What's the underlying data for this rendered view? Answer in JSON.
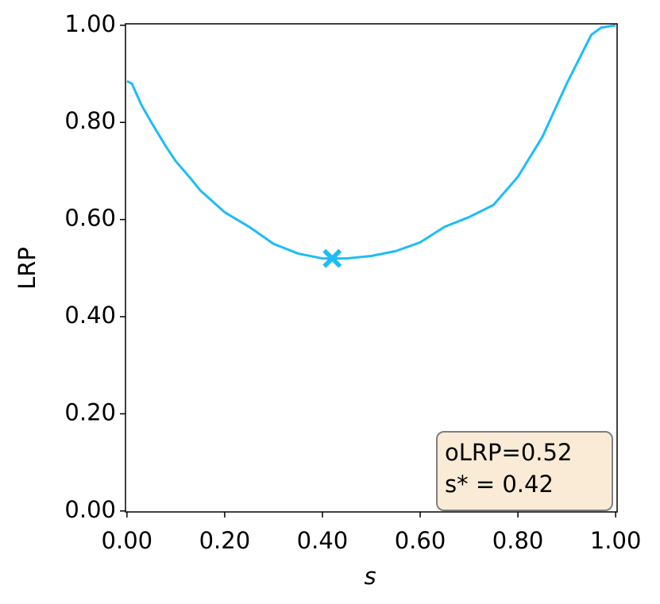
{
  "chart_data": {
    "type": "line",
    "xlabel": "s",
    "ylabel": "LRP",
    "x": [
      0,
      0.01,
      0.03,
      0.05,
      0.08,
      0.1,
      0.13,
      0.15,
      0.2,
      0.25,
      0.3,
      0.35,
      0.4,
      0.45,
      0.5,
      0.55,
      0.6,
      0.65,
      0.7,
      0.75,
      0.8,
      0.85,
      0.9,
      0.93,
      0.95,
      0.97,
      1.0
    ],
    "series": [
      {
        "name": "LRP",
        "color": "#1cbdf7",
        "values": [
          0.885,
          0.88,
          0.835,
          0.8,
          0.75,
          0.72,
          0.685,
          0.66,
          0.615,
          0.585,
          0.55,
          0.53,
          0.52,
          0.52,
          0.525,
          0.535,
          0.553,
          0.585,
          0.605,
          0.63,
          0.688,
          0.77,
          0.88,
          0.94,
          0.98,
          0.995,
          1.0
        ]
      }
    ],
    "optimum": {
      "x": 0.42,
      "y": 0.52
    },
    "annotation": [
      "oLRP=0.52",
      "s* = 0.42"
    ],
    "xlim": [
      -0.003,
      1.003
    ],
    "ylim": [
      -0.002,
      1.003
    ],
    "xticks": [
      {
        "value": 0,
        "label": "0.00"
      },
      {
        "value": 0.2,
        "label": "0.20"
      },
      {
        "value": 0.4,
        "label": "0.40"
      },
      {
        "value": 0.6,
        "label": "0.60"
      },
      {
        "value": 0.8,
        "label": "0.80"
      },
      {
        "value": 1,
        "label": "1.00"
      }
    ],
    "yticks": [
      {
        "value": 0,
        "label": "0.00"
      },
      {
        "value": 0.2,
        "label": "0.20"
      },
      {
        "value": 0.4,
        "label": "0.40"
      },
      {
        "value": 0.6,
        "label": "0.60"
      },
      {
        "value": 0.8,
        "label": "0.80"
      },
      {
        "value": 1,
        "label": "1.00"
      }
    ]
  }
}
